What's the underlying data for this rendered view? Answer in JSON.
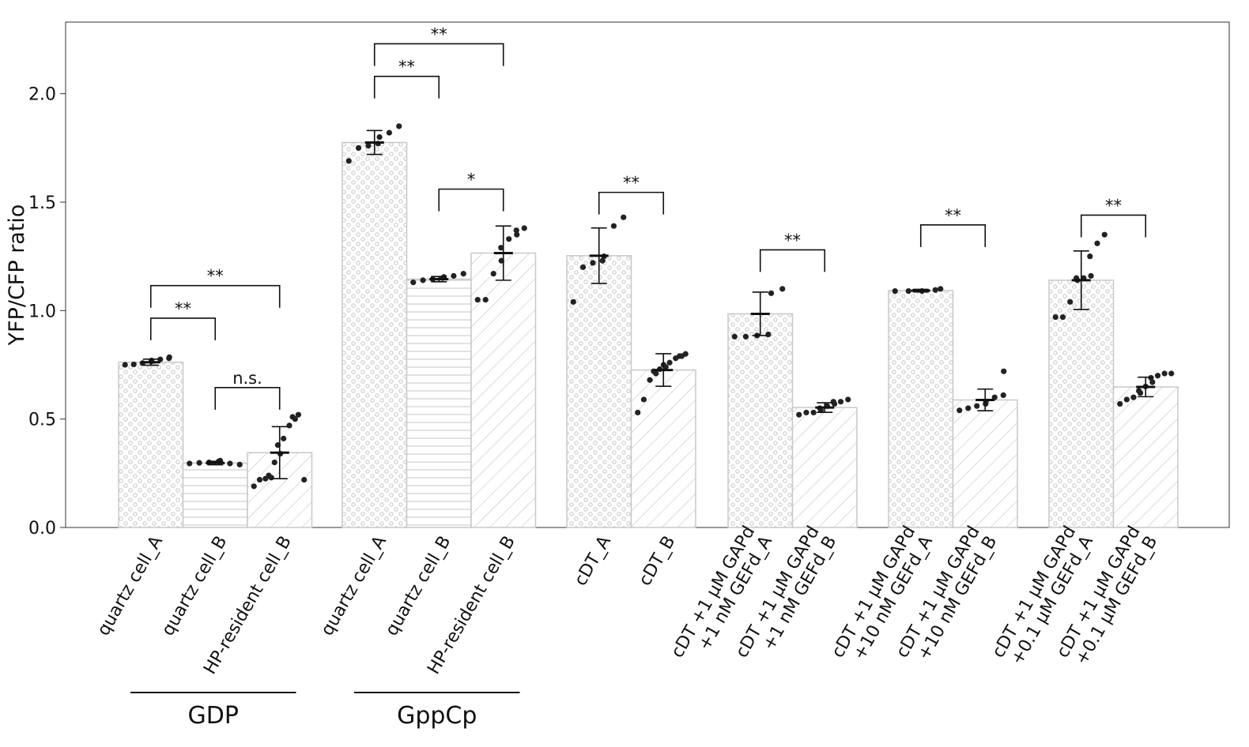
{
  "chart_data": {
    "type": "bar",
    "ylabel": "YFP/CFP ratio",
    "ylim": [
      0,
      2.33
    ],
    "yticks": [
      "0.0",
      "0.5",
      "1.0",
      "1.5",
      "2.0"
    ],
    "ytick_values": [
      0,
      0.5,
      1.0,
      1.5,
      2.0
    ],
    "grid": false,
    "legend": "none",
    "colors": {
      "bar_fill": "#ffffff",
      "bar_edge": "#c8c8c8",
      "pattern": "#c4c4c4",
      "point": "#222222",
      "error": "#111111"
    },
    "bars": [
      {
        "label": [
          "quartz cell_A"
        ],
        "value": 0.762,
        "err": 0.014,
        "pattern": "dots",
        "points": [
          0.75,
          0.752,
          0.758,
          0.765,
          0.77,
          0.775,
          0.78,
          0.785
        ]
      },
      {
        "label": [
          "quartz cell_B"
        ],
        "value": 0.297,
        "err": 0.008,
        "pattern": "hlines",
        "points": [
          0.295,
          0.298,
          0.3,
          0.305,
          0.308,
          0.295,
          0.29
        ]
      },
      {
        "label": [
          "HP-resident cell_B"
        ],
        "value": 0.345,
        "err": 0.12,
        "pattern": "diag",
        "points": [
          0.19,
          0.22,
          0.225,
          0.23,
          0.24,
          0.3,
          0.34,
          0.38,
          0.41,
          0.47,
          0.5,
          0.51,
          0.52,
          0.22
        ]
      },
      {
        "label": [
          "quartz cell_A"
        ],
        "value": 1.775,
        "err": 0.055,
        "pattern": "dots",
        "points": [
          1.69,
          1.75,
          1.76,
          1.77,
          1.8,
          1.82,
          1.85
        ]
      },
      {
        "label": [
          "quartz cell_B"
        ],
        "value": 1.145,
        "err": 0.012,
        "pattern": "hlines",
        "points": [
          1.13,
          1.14,
          1.145,
          1.15,
          1.155,
          1.16,
          1.17
        ]
      },
      {
        "label": [
          "HP-resident cell_B"
        ],
        "value": 1.265,
        "err": 0.125,
        "pattern": "diag",
        "points": [
          1.05,
          1.05,
          1.17,
          1.23,
          1.29,
          1.33,
          1.35,
          1.37,
          1.38
        ]
      },
      {
        "label": [
          "cDT_A"
        ],
        "value": 1.253,
        "err": 0.128,
        "pattern": "dots",
        "points": [
          1.04,
          1.2,
          1.22,
          1.23,
          1.25,
          1.39,
          1.43
        ]
      },
      {
        "label": [
          "cDT_B"
        ],
        "value": 0.726,
        "err": 0.075,
        "pattern": "diag",
        "points": [
          0.53,
          0.59,
          0.68,
          0.71,
          0.72,
          0.73,
          0.74,
          0.75,
          0.76,
          0.78,
          0.79,
          0.79,
          0.8
        ]
      },
      {
        "label": [
          "cDT +1 μM GAPd",
          "+1 nM GEFd_A"
        ],
        "value": 0.985,
        "err": 0.1,
        "pattern": "dots",
        "points": [
          0.88,
          0.88,
          0.885,
          0.89,
          1.08,
          1.1
        ]
      },
      {
        "label": [
          "cDT +1 μM GAPd",
          "+1 nM GEFd_B"
        ],
        "value": 0.553,
        "err": 0.022,
        "pattern": "diag",
        "points": [
          0.52,
          0.53,
          0.53,
          0.54,
          0.55,
          0.56,
          0.57,
          0.58,
          0.58,
          0.59
        ]
      },
      {
        "label": [
          "cDT +1 μM GAPd",
          "+10 nM GEFd_A"
        ],
        "value": 1.092,
        "err": 0.006,
        "pattern": "dots",
        "points": [
          1.09,
          1.09,
          1.09,
          1.095,
          1.1
        ]
      },
      {
        "label": [
          "cDT +1 μM GAPd",
          "+10 nM GEFd_B"
        ],
        "value": 0.588,
        "err": 0.05,
        "pattern": "diag",
        "points": [
          0.54,
          0.55,
          0.56,
          0.57,
          0.58,
          0.6,
          0.61,
          0.72
        ]
      },
      {
        "label": [
          "cDT +1 μM GAPd",
          "+0.1 μM GEFd_A"
        ],
        "value": 1.14,
        "err": 0.135,
        "pattern": "dots",
        "points": [
          0.97,
          0.97,
          1.04,
          1.14,
          1.15,
          1.15,
          1.16,
          1.25,
          1.31,
          1.35
        ]
      },
      {
        "label": [
          "cDT +1 μM GAPd",
          "+0.1 μM GEFd_B"
        ],
        "value": 0.648,
        "err": 0.045,
        "pattern": "diag",
        "points": [
          0.57,
          0.59,
          0.6,
          0.62,
          0.63,
          0.65,
          0.67,
          0.69,
          0.7,
          0.71,
          0.71
        ]
      }
    ],
    "groups": [
      {
        "name": "GDP",
        "bars": [
          0,
          1,
          2
        ]
      },
      {
        "name": "GppCp",
        "bars": [
          3,
          4,
          5
        ]
      }
    ],
    "significance": [
      {
        "from": 0,
        "to": 1,
        "y": 0.965,
        "label": "**"
      },
      {
        "from": 0,
        "to": 2,
        "y": 1.115,
        "label": "**"
      },
      {
        "from": 1,
        "to": 2,
        "y": 0.645,
        "label": "n.s."
      },
      {
        "from": 3,
        "to": 4,
        "y": 2.08,
        "label": "**"
      },
      {
        "from": 3,
        "to": 5,
        "y": 2.23,
        "label": "**"
      },
      {
        "from": 4,
        "to": 5,
        "y": 1.56,
        "label": "*"
      },
      {
        "from": 6,
        "to": 7,
        "y": 1.545,
        "label": "**"
      },
      {
        "from": 8,
        "to": 9,
        "y": 1.28,
        "label": "**"
      },
      {
        "from": 10,
        "to": 11,
        "y": 1.395,
        "label": "**"
      },
      {
        "from": 12,
        "to": 13,
        "y": 1.44,
        "label": "**"
      }
    ]
  }
}
